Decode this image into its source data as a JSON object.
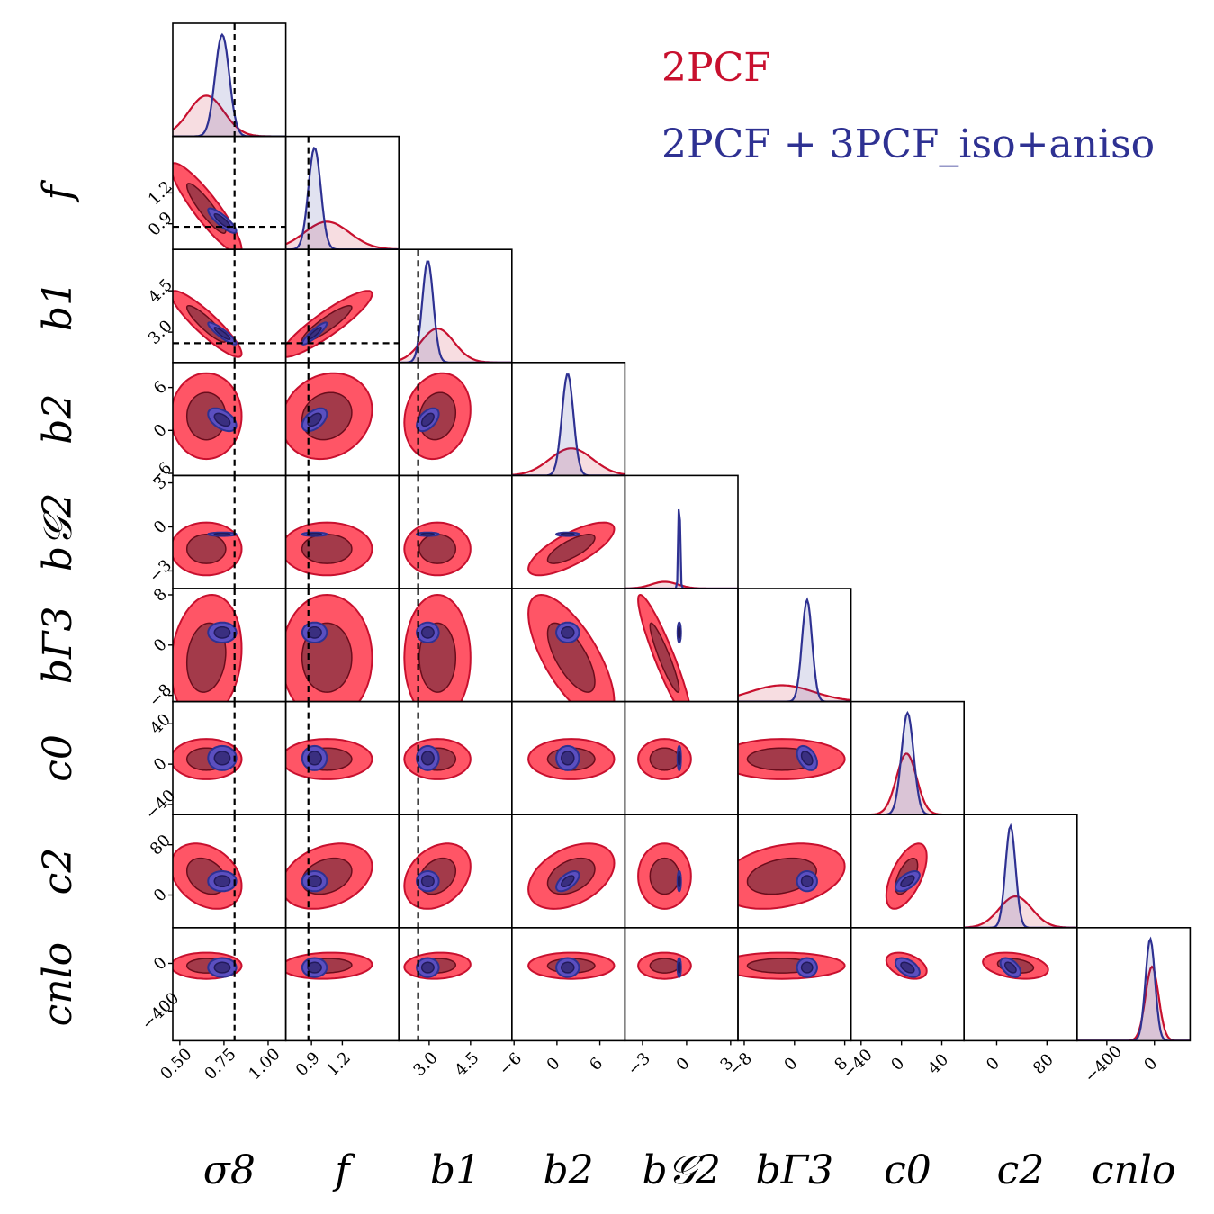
{
  "chart_data": {
    "type": "corner",
    "parameters": [
      {
        "key": "sigma8",
        "label": "σ8",
        "range": [
          0.46,
          1.1
        ],
        "ticks": [
          0.5,
          0.75,
          1.0
        ],
        "tick_labels": [
          "0.50",
          "0.75",
          "1.00"
        ],
        "truth": 0.81
      },
      {
        "key": "f",
        "label": "f",
        "range": [
          0.65,
          1.75
        ],
        "ticks": [
          0.9,
          1.2
        ],
        "tick_labels": [
          "0.9",
          "1.2"
        ],
        "truth": 0.87
      },
      {
        "key": "b1",
        "label": "b1",
        "range": [
          1.9,
          6.0
        ],
        "ticks": [
          3.0,
          4.5
        ],
        "tick_labels": [
          "3.0",
          "4.5"
        ],
        "truth": 2.6
      },
      {
        "key": "b2",
        "label": "b2",
        "range": [
          -6.3,
          9.5
        ],
        "ticks": [
          -6,
          0,
          6
        ],
        "tick_labels": [
          "−6",
          "0",
          "6"
        ],
        "truth": null
      },
      {
        "key": "bG2",
        "label": "b𝒢2",
        "range": [
          -4.2,
          3.5
        ],
        "ticks": [
          -3,
          0,
          3
        ],
        "tick_labels": [
          "−3",
          "0",
          "3"
        ],
        "truth": null
      },
      {
        "key": "bGamma3",
        "label": "bΓ3",
        "range": [
          -9.0,
          9.0
        ],
        "ticks": [
          -8,
          0,
          8
        ],
        "tick_labels": [
          "−8",
          "0",
          "8"
        ],
        "truth": null
      },
      {
        "key": "c0",
        "label": "c0",
        "range": [
          -50,
          62
        ],
        "ticks": [
          -40,
          0,
          40
        ],
        "tick_labels": [
          "−40",
          "0",
          "40"
        ],
        "truth": null
      },
      {
        "key": "c2",
        "label": "c2",
        "range": [
          -52,
          128
        ],
        "ticks": [
          0,
          80
        ],
        "tick_labels": [
          "0",
          "80"
        ],
        "truth": null
      },
      {
        "key": "cnlo",
        "label": "cnlo",
        "range": [
          -650,
          300
        ],
        "ticks": [
          -400,
          0
        ],
        "tick_labels": [
          "−400",
          "0"
        ],
        "truth": null
      }
    ],
    "series": [
      {
        "name": "2PCF",
        "color": "#c8102e",
        "fill_outer": "#ff5566",
        "fill_inner": "#a33a4a",
        "means": [
          0.65,
          1.05,
          3.3,
          2.0,
          -1.5,
          -2.0,
          5,
          30,
          -20
        ],
        "sigmas": [
          0.1,
          0.22,
          0.6,
          3.0,
          0.9,
          5.0,
          10,
          26,
          55
        ]
      },
      {
        "name": "2PCF + 3PCF_iso+aniso",
        "color": "#2e3192",
        "fill_outer": "#5b4fc0",
        "fill_inner": "#3a2f80",
        "means": [
          0.74,
          0.93,
          2.95,
          1.5,
          -0.5,
          2.0,
          6,
          22,
          -35
        ],
        "sigmas": [
          0.04,
          0.06,
          0.2,
          0.8,
          0.06,
          0.8,
          6,
          8,
          40
        ]
      }
    ],
    "correlations_2pcf": [
      [
        1,
        -0.9,
        -0.9,
        0,
        0,
        0.15,
        0,
        -0.3,
        0
      ],
      [
        -0.9,
        1,
        0.9,
        0.15,
        0,
        0,
        0,
        0.3,
        0.1
      ],
      [
        -0.9,
        0.9,
        1,
        0.15,
        0,
        0,
        0,
        0.3,
        0.1
      ],
      [
        0,
        0.15,
        0.15,
        1,
        0.75,
        -0.7,
        0,
        0.4,
        0
      ],
      [
        0,
        0,
        0,
        0.75,
        1,
        -0.92,
        0,
        0,
        0
      ],
      [
        0.15,
        0,
        0,
        -0.7,
        -0.92,
        1,
        0,
        0.3,
        0
      ],
      [
        0,
        0,
        0,
        0,
        0,
        0,
        1,
        0.6,
        -0.4
      ],
      [
        -0.3,
        0.3,
        0.3,
        0.4,
        0,
        0.3,
        0.6,
        1,
        -0.3
      ],
      [
        0,
        0.1,
        0.1,
        0,
        0,
        0,
        -0.4,
        -0.3,
        1
      ]
    ],
    "correlations_joint": [
      [
        1,
        -0.85,
        -0.9,
        -0.5,
        0,
        0,
        0,
        0,
        0
      ],
      [
        -0.85,
        1,
        0.9,
        0.5,
        0,
        0,
        0,
        0,
        0
      ],
      [
        -0.9,
        0.9,
        1,
        0.5,
        0,
        0,
        0,
        0,
        0
      ],
      [
        -0.5,
        0.5,
        0.5,
        1,
        0,
        0,
        0,
        0.6,
        0
      ],
      [
        0,
        0,
        0,
        0,
        1,
        0,
        0,
        0,
        0
      ],
      [
        0,
        0,
        0,
        0,
        0,
        1,
        -0.4,
        0,
        0
      ],
      [
        0,
        0,
        0,
        0,
        0,
        -0.4,
        1,
        0.6,
        -0.5
      ],
      [
        0,
        0,
        0,
        0.6,
        0,
        0,
        0.6,
        1,
        -0.5
      ],
      [
        0,
        0,
        0,
        0,
        0,
        0,
        -0.5,
        -0.5,
        1
      ]
    ],
    "legend_position": "top-right"
  }
}
